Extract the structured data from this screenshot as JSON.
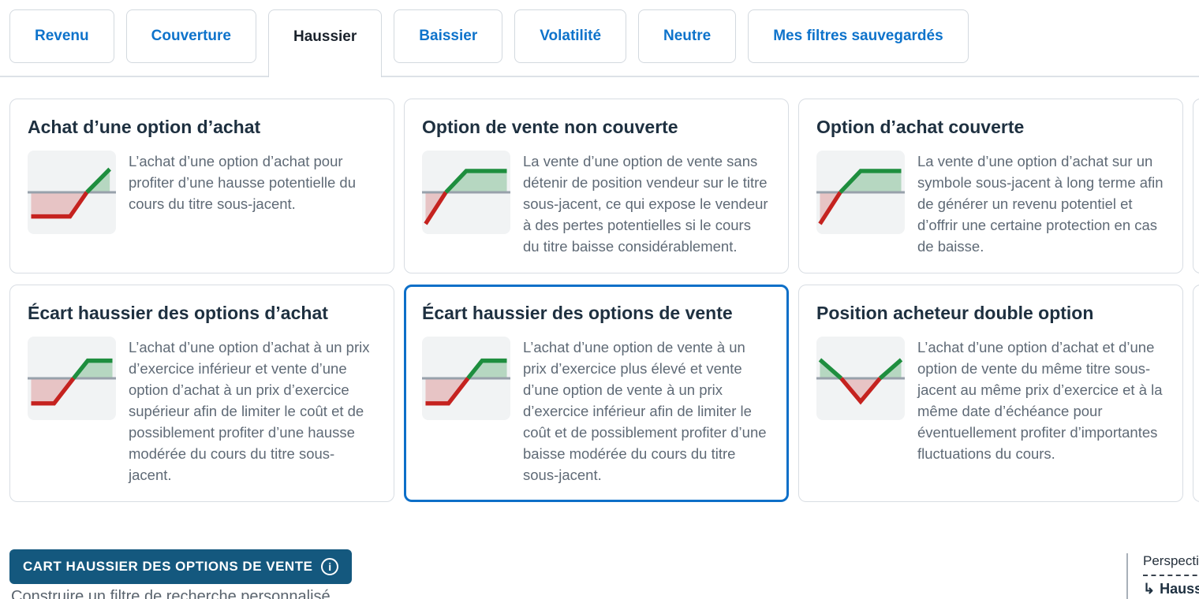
{
  "tabs": [
    {
      "label": "Revenu",
      "active": false
    },
    {
      "label": "Couverture",
      "active": false
    },
    {
      "label": "Haussier",
      "active": true
    },
    {
      "label": "Baissier",
      "active": false
    },
    {
      "label": "Volatilité",
      "active": false
    },
    {
      "label": "Neutre",
      "active": false
    },
    {
      "label": "Mes filtres sauvegardés",
      "active": false
    }
  ],
  "cards": [
    {
      "title": "Achat d’une option d’achat",
      "description": "L’achat d’une option d’achat pour profiter d’une hausse potentielle du cours du titre sous-jacent.",
      "icon": "payoff-long-call-icon",
      "selected": false
    },
    {
      "title": "Option de vente non couverte",
      "description": "La vente d’une option de vente sans détenir de position vendeur sur le titre sous-jacent, ce qui expose le vendeur à des pertes potentielles si le cours du titre baisse considérablement.",
      "icon": "payoff-short-put-icon",
      "selected": false
    },
    {
      "title": "Option d’achat couverte",
      "description": "La vente d’une option d’achat sur un symbole sous-jacent à long terme afin de générer un revenu potentiel et d’offrir une certaine protection en cas de baisse.",
      "icon": "payoff-covered-call-icon",
      "selected": false
    },
    {
      "title": "Écart haussier des options d’achat",
      "description": "L’achat d’une option d’achat à un prix d’exercice inférieur et vente d’une option d’achat à un prix d’exercice supérieur afin de limiter le coût et de possiblement profiter d’une hausse modérée du cours du titre sous-jacent.",
      "icon": "payoff-bull-call-spread-icon",
      "selected": false
    },
    {
      "title": "Écart haussier des options de vente",
      "description": "L’achat d’une option de vente à un prix d’exercice plus élevé et vente d’une option de vente à un prix d’exercice inférieur afin de limiter le coût et de possiblement profiter d’une baisse modérée du cours du titre sous-jacent.",
      "icon": "payoff-bull-put-spread-icon",
      "selected": true
    },
    {
      "title": "Position acheteur double option",
      "description": "L’achat d’une option d’achat et d’une option de vente du même titre sous-jacent au même prix d’exercice et à la même date d’échéance pour éventuellement profiter d’importantes fluctuations du cours.",
      "icon": "payoff-long-straddle-icon",
      "selected": false
    }
  ],
  "footer": {
    "selected_strategy_badge": "CART HAUSSIER DES OPTIONS DE VENTE",
    "badge_info_icon": "info-icon",
    "builder_link": "Construire un filtre de recherche personnalisé",
    "outlook_label": "Perspective",
    "outlook_value": "Haussier"
  },
  "colors": {
    "tab_link_blue": "#0e73cb",
    "active_tab_text": "#1a222c",
    "card_border": "#d8dde3",
    "selected_card_border": "#0d6fc8",
    "card_title": "#1e3040",
    "card_description": "#5f6a76",
    "badge_background": "#14587e",
    "payoff_red": "#c5221f",
    "payoff_green": "#1e8e3e",
    "payoff_zero_line": "#98a1ab",
    "payoff_background": "#f1f3f4"
  }
}
